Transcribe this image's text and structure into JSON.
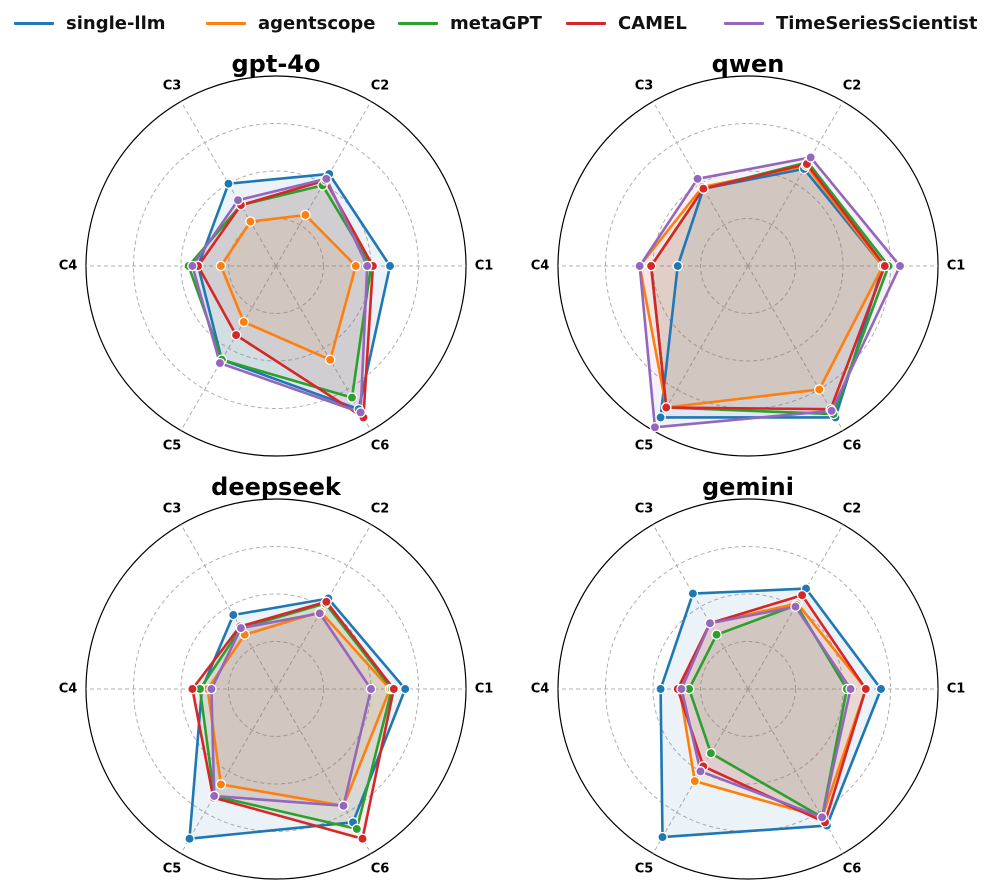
{
  "legend": [
    {
      "name": "single-llm",
      "color": "#1f77b4"
    },
    {
      "name": "agentscope",
      "color": "#ff7f0e"
    },
    {
      "name": "metaGPT",
      "color": "#2ca02c"
    },
    {
      "name": "CAMEL",
      "color": "#d62728"
    },
    {
      "name": "TimeSeriesScientist",
      "color": "#9467bd"
    }
  ],
  "chart_data": [
    {
      "type": "radar",
      "title": "gpt-4o",
      "axes": [
        "C1",
        "C2",
        "C3",
        "C4",
        "C5",
        "C6"
      ],
      "rmax": 1.0,
      "gridlines": [
        0.25,
        0.5,
        0.75,
        1.0
      ],
      "series": [
        {
          "name": "single-llm",
          "values": [
            0.6,
            0.56,
            0.5,
            0.41,
            0.57,
            0.87
          ]
        },
        {
          "name": "agentscope",
          "values": [
            0.42,
            0.31,
            0.27,
            0.29,
            0.34,
            0.57
          ]
        },
        {
          "name": "metaGPT",
          "values": [
            0.5,
            0.49,
            0.37,
            0.46,
            0.57,
            0.8
          ]
        },
        {
          "name": "CAMEL",
          "values": [
            0.51,
            0.52,
            0.37,
            0.41,
            0.42,
            0.92
          ]
        },
        {
          "name": "TimeSeriesScientist",
          "values": [
            0.48,
            0.53,
            0.4,
            0.44,
            0.59,
            0.89
          ]
        }
      ]
    },
    {
      "type": "radar",
      "title": "qwen",
      "axes": [
        "C1",
        "C2",
        "C3",
        "C4",
        "C5",
        "C6"
      ],
      "rmax": 1.0,
      "gridlines": [
        0.25,
        0.5,
        0.75,
        1.0
      ],
      "series": [
        {
          "name": "single-llm",
          "values": [
            0.71,
            0.59,
            0.47,
            0.37,
            0.92,
            0.92
          ]
        },
        {
          "name": "agentscope",
          "values": [
            0.71,
            0.61,
            0.48,
            0.57,
            0.86,
            0.75
          ]
        },
        {
          "name": "metaGPT",
          "values": [
            0.74,
            0.63,
            0.47,
            0.51,
            0.86,
            0.9
          ]
        },
        {
          "name": "CAMEL",
          "values": [
            0.72,
            0.62,
            0.47,
            0.51,
            0.86,
            0.87
          ]
        },
        {
          "name": "TimeSeriesScientist",
          "values": [
            0.8,
            0.66,
            0.53,
            0.57,
            0.98,
            0.88
          ]
        }
      ]
    },
    {
      "type": "radar",
      "title": "deepseek",
      "axes": [
        "C1",
        "C2",
        "C3",
        "C4",
        "C5",
        "C6"
      ],
      "rmax": 1.0,
      "gridlines": [
        0.25,
        0.5,
        0.75,
        1.0
      ],
      "series": [
        {
          "name": "single-llm",
          "values": [
            0.68,
            0.55,
            0.45,
            0.39,
            0.91,
            0.81
          ]
        },
        {
          "name": "agentscope",
          "values": [
            0.6,
            0.47,
            0.33,
            0.36,
            0.58,
            0.71
          ]
        },
        {
          "name": "metaGPT",
          "values": [
            0.61,
            0.52,
            0.37,
            0.4,
            0.65,
            0.85
          ]
        },
        {
          "name": "CAMEL",
          "values": [
            0.62,
            0.53,
            0.38,
            0.44,
            0.66,
            0.91
          ]
        },
        {
          "name": "TimeSeriesScientist",
          "values": [
            0.5,
            0.46,
            0.37,
            0.34,
            0.65,
            0.71
          ]
        }
      ]
    },
    {
      "type": "radar",
      "title": "gemini",
      "axes": [
        "C1",
        "C2",
        "C3",
        "C4",
        "C5",
        "C6"
      ],
      "rmax": 1.0,
      "gridlines": [
        0.25,
        0.5,
        0.75,
        1.0
      ],
      "series": [
        {
          "name": "single-llm",
          "values": [
            0.7,
            0.61,
            0.58,
            0.46,
            0.9,
            0.83
          ]
        },
        {
          "name": "agentscope",
          "values": [
            0.62,
            0.52,
            0.4,
            0.36,
            0.56,
            0.78
          ]
        },
        {
          "name": "metaGPT",
          "values": [
            0.52,
            0.51,
            0.33,
            0.31,
            0.39,
            0.78
          ]
        },
        {
          "name": "CAMEL",
          "values": [
            0.62,
            0.57,
            0.4,
            0.37,
            0.47,
            0.81
          ]
        },
        {
          "name": "TimeSeriesScientist",
          "values": [
            0.54,
            0.5,
            0.4,
            0.35,
            0.5,
            0.78
          ]
        }
      ]
    }
  ]
}
